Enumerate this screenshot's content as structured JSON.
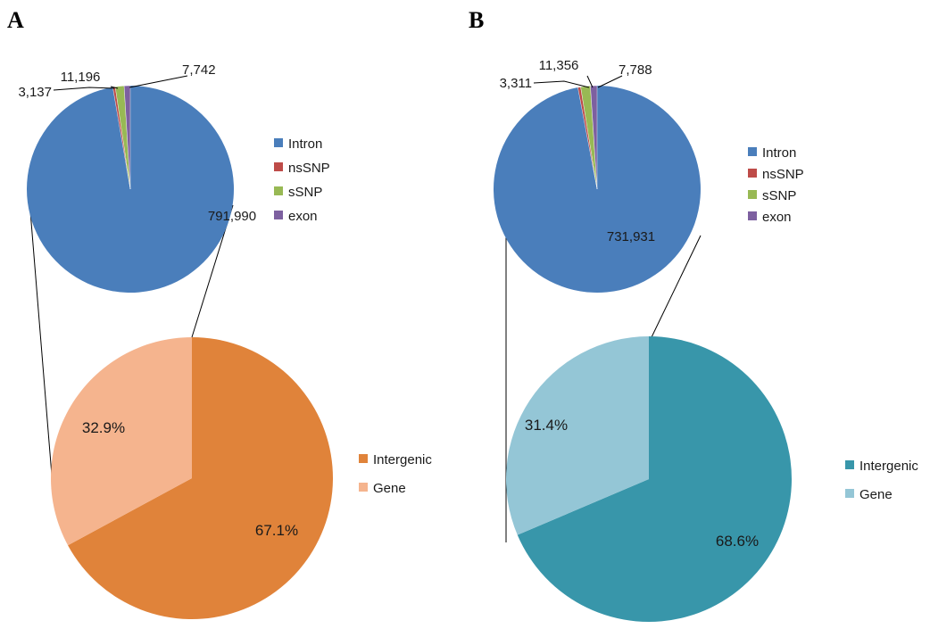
{
  "panels": [
    {
      "letter": "A",
      "chart_data": [
        {
          "type": "pie",
          "labels": [
            "Intron",
            "nsSNP",
            "sSNP",
            "exon"
          ],
          "values": [
            791990,
            3137,
            11196,
            7742
          ],
          "value_labels": [
            "791,990",
            "3,137",
            "11,196",
            "7,742"
          ],
          "colors": [
            "#4A7EBB",
            "#BE4B48",
            "#98B954",
            "#7D60A0"
          ],
          "legend": "right"
        },
        {
          "type": "pie",
          "labels": [
            "Intergenic",
            "Gene"
          ],
          "values": [
            67.1,
            32.9
          ],
          "value_labels": [
            "67.1%",
            "32.9%"
          ],
          "colors": [
            "#E0833A",
            "#F5B48E"
          ],
          "legend": "right"
        }
      ]
    },
    {
      "letter": "B",
      "chart_data": [
        {
          "type": "pie",
          "labels": [
            "Intron",
            "nsSNP",
            "sSNP",
            "exon"
          ],
          "values": [
            731931,
            3311,
            11356,
            7788
          ],
          "value_labels": [
            "731,931",
            "3,311",
            "11,356",
            "7,788"
          ],
          "colors": [
            "#4A7EBB",
            "#BE4B48",
            "#98B954",
            "#7D60A0"
          ],
          "legend": "right"
        },
        {
          "type": "pie",
          "labels": [
            "Intergenic",
            "Gene"
          ],
          "values": [
            68.6,
            31.4
          ],
          "value_labels": [
            "68.6%",
            "31.4%"
          ],
          "colors": [
            "#3896AA",
            "#94C6D6"
          ],
          "legend": "right"
        }
      ]
    }
  ]
}
